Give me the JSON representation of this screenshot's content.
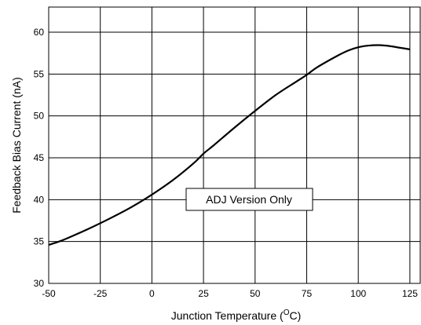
{
  "chart_data": {
    "type": "line",
    "xlabel_main": "Junction Temperature (",
    "xlabel_sup": "O",
    "xlabel_end": "C)",
    "ylabel": "Feedback Bias Current (nA)",
    "xlim": [
      -50,
      130
    ],
    "ylim": [
      30,
      63
    ],
    "xticks": [
      -50,
      -25,
      0,
      25,
      50,
      75,
      100,
      125
    ],
    "yticks": [
      30,
      35,
      40,
      45,
      50,
      55,
      60
    ],
    "grid": true,
    "annotation": "ADJ Version Only",
    "series": [
      {
        "x": [
          -50,
          -45,
          -40,
          -30,
          -20,
          -10,
          0,
          10,
          20,
          25,
          30,
          40,
          50,
          60,
          70,
          75,
          80,
          90,
          95,
          100,
          105,
          110,
          115,
          120,
          125
        ],
        "y": [
          34.6,
          35.0,
          35.5,
          36.6,
          37.8,
          39.1,
          40.6,
          42.3,
          44.3,
          45.5,
          46.5,
          48.6,
          50.6,
          52.5,
          54.1,
          54.9,
          55.8,
          57.2,
          57.8,
          58.2,
          58.4,
          58.45,
          58.35,
          58.15,
          57.95
        ]
      }
    ],
    "colors": {
      "line": "#000000",
      "grid": "#000000"
    }
  }
}
